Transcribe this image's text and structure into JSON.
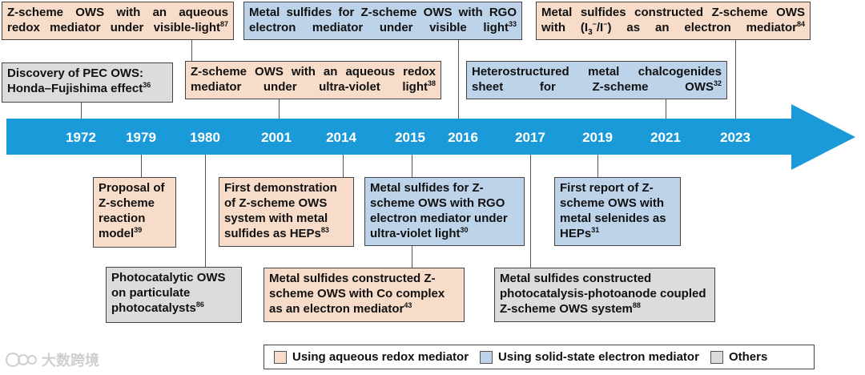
{
  "timeline": {
    "years": [
      "1972",
      "1979",
      "1980",
      "2001",
      "2014",
      "2015",
      "2016",
      "2017",
      "2019",
      "2021",
      "2023"
    ]
  },
  "colors": {
    "arrow": "#1a9ad9",
    "aqueous": "#f6dcc9",
    "solid_state": "#bcd3ea",
    "others": "#dcdcdc"
  },
  "boxes": {
    "zscheme_aqueous_visible": {
      "text": "Z-scheme OWS with an aqueous redox mediator under visible-light",
      "ref": "87"
    },
    "sulfides_rgo_visible": {
      "text": "Metal sulfides for Z-scheme OWS with RGO electron mediator under visible light",
      "ref": "33"
    },
    "sulfides_iodide": {
      "text_before": "Metal sulfides constructed Z-scheme OWS with (I",
      "sub": "3",
      "sup_minus1": "−",
      "text_mid": "/I",
      "sup_minus2": "−",
      "text_after": ") as an electron mediator",
      "ref": "84"
    },
    "pec_honda": {
      "text": "Discovery of PEC OWS: Honda–Fujishima effect",
      "ref": "36"
    },
    "zscheme_aqueous_uv": {
      "text": "Z-scheme OWS with an aqueous redox mediator under ultra-violet light",
      "ref": "38"
    },
    "chalcogenides": {
      "text": "Heterostructured metal chalcogenides sheet for Z-scheme OWS",
      "ref": "32"
    },
    "proposal": {
      "text": "Proposal of Z-scheme reaction model",
      "ref": "39"
    },
    "first_demo": {
      "text": "First demonstration of Z-scheme OWS system with metal sulfides as HEPs",
      "ref": "83"
    },
    "sulfides_rgo_uv": {
      "text": "Metal sulfides for Z-scheme OWS with RGO electron mediator under ultra-violet light",
      "ref": "30"
    },
    "selenides": {
      "text": "First report of Z-scheme OWS with metal selenides as HEPs",
      "ref": "31"
    },
    "particulate": {
      "text": "Photocatalytic OWS on particulate photocatalysts",
      "ref": "86"
    },
    "co_complex": {
      "text": "Metal sulfides constructed Z-scheme OWS with Co complex as an electron mediator",
      "ref": "43"
    },
    "photoanode": {
      "text": "Metal sulfides constructed photocatalysis-photoanode coupled Z-scheme OWS system",
      "ref": "88"
    }
  },
  "legend": {
    "aqueous": "Using aqueous redox mediator",
    "solid_state": "Using solid-state electron mediator",
    "others": "Others"
  },
  "watermark": {
    "text": "大数跨境"
  }
}
